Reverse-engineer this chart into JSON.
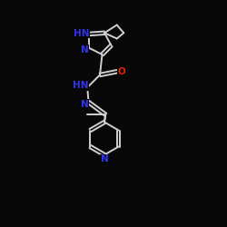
{
  "bg_color": "#080808",
  "bond_color": "#d0d0d0",
  "atom_colors": {
    "N": "#3333ee",
    "O": "#dd2200",
    "C": "#d0d0d0"
  },
  "figsize": [
    2.5,
    2.5
  ],
  "dpi": 100,
  "lw": 1.4,
  "fs": 7.5
}
